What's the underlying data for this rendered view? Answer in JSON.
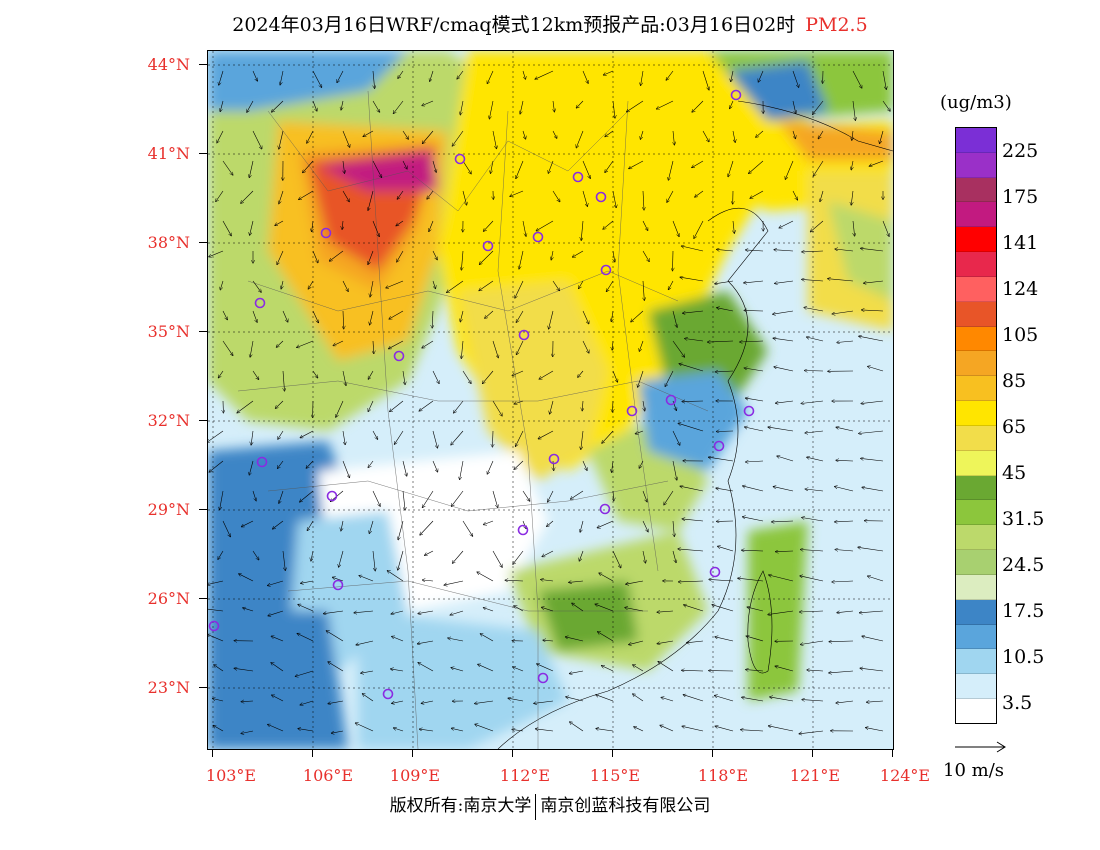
{
  "title": {
    "main": "2024年03月16日WRF/cmaq模式12km预报产品:03月16日02时",
    "pollutant": "PM2.5"
  },
  "axes": {
    "latitude_labels": [
      "44°N",
      "41°N",
      "38°N",
      "35°N",
      "32°N",
      "29°N",
      "26°N",
      "23°N"
    ],
    "longitude_labels": [
      "103°E",
      "106°E",
      "109°E",
      "112°E",
      "115°E",
      "118°E",
      "121°E",
      "124°E"
    ]
  },
  "legend": {
    "unit": "(ug/m3)",
    "labels": [
      "225",
      "175",
      "141",
      "124",
      "105",
      "85",
      "65",
      "45",
      "31.5",
      "24.5",
      "17.5",
      "10.5",
      "3.5"
    ],
    "colors_top_to_bottom": [
      "#7b2fd6",
      "#9a30c8",
      "#a83060",
      "#c21a80",
      "#ff0000",
      "#e8284c",
      "#ff6060",
      "#e85528",
      "#ff8800",
      "#f5a623",
      "#f8c020",
      "#ffe500",
      "#f2dd4a",
      "#eef55a",
      "#6aa832",
      "#8cc63c",
      "#bcd96b",
      "#a8d070",
      "#dcedc0",
      "#3d85c6",
      "#5aa5dc",
      "#a0d6f0",
      "#d5eefa",
      "#ffffff"
    ]
  },
  "wind_reference": {
    "label": "10 m/s"
  },
  "credits": {
    "left": "版权所有:南京大学",
    "right": "南京创蓝科技有限公司"
  }
}
